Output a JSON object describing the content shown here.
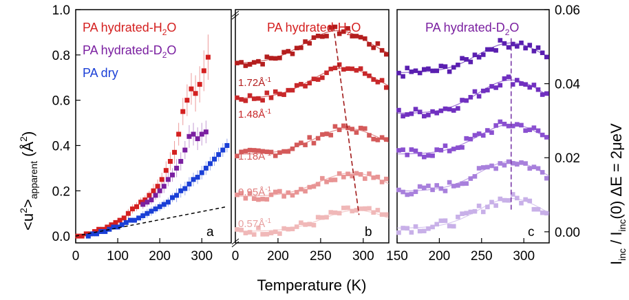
{
  "chart_data": [
    {
      "id": "a",
      "type": "scatter",
      "panel_label": "a",
      "xlim": [
        0,
        370
      ],
      "ylim": [
        -0.03,
        1.0
      ],
      "xticks": [
        0,
        100,
        200,
        300
      ],
      "xtick_labels": [
        "0",
        "100",
        "200",
        "300"
      ],
      "yticks": [
        0.0,
        0.2,
        0.4,
        0.6,
        0.8,
        1.0
      ],
      "ytick_labels": [
        "0.0",
        "0.2",
        "0.4",
        "0.6",
        "0.8",
        "1.0"
      ],
      "ylabel": "<u²>apparent (Å²)",
      "legend": [
        "PA hydrated-H2O",
        "PA hydrated-D2O",
        "PA dry"
      ],
      "colors": [
        "#d42020",
        "#7a1fa0",
        "#1a3fd6"
      ],
      "series": [
        {
          "name": "PA hydrated-H2O",
          "color": "#d42020",
          "x": [
            5,
            15,
            25,
            35,
            45,
            55,
            65,
            75,
            85,
            95,
            105,
            115,
            125,
            135,
            145,
            155,
            165,
            175,
            185,
            195,
            205,
            215,
            225,
            235,
            245,
            255,
            265,
            275,
            285,
            295,
            305,
            315
          ],
          "y": [
            0.0,
            0.0,
            0.01,
            0.01,
            0.02,
            0.03,
            0.03,
            0.04,
            0.05,
            0.06,
            0.07,
            0.08,
            0.1,
            0.12,
            0.13,
            0.15,
            0.16,
            0.18,
            0.2,
            0.22,
            0.25,
            0.29,
            0.33,
            0.37,
            0.45,
            0.55,
            0.6,
            0.65,
            0.63,
            0.67,
            0.73,
            0.79
          ],
          "err": [
            0.01,
            0.01,
            0.01,
            0.01,
            0.01,
            0.01,
            0.01,
            0.01,
            0.01,
            0.01,
            0.01,
            0.01,
            0.02,
            0.02,
            0.02,
            0.02,
            0.02,
            0.02,
            0.03,
            0.03,
            0.03,
            0.04,
            0.04,
            0.05,
            0.05,
            0.06,
            0.07,
            0.07,
            0.08,
            0.08,
            0.09,
            0.1
          ]
        },
        {
          "name": "PA hydrated-D2O",
          "color": "#7a1fa0",
          "x": [
            160,
            170,
            180,
            190,
            200,
            210,
            220,
            230,
            240,
            250,
            260,
            270,
            280,
            290,
            300,
            310
          ],
          "y": [
            0.14,
            0.15,
            0.16,
            0.18,
            0.2,
            0.22,
            0.25,
            0.27,
            0.3,
            0.33,
            0.38,
            0.44,
            0.45,
            0.43,
            0.45,
            0.46
          ],
          "err": [
            0.02,
            0.02,
            0.02,
            0.02,
            0.03,
            0.03,
            0.03,
            0.03,
            0.04,
            0.04,
            0.04,
            0.05,
            0.05,
            0.05,
            0.05,
            0.05
          ]
        },
        {
          "name": "PA dry",
          "color": "#1a3fd6",
          "x": [
            30,
            40,
            50,
            60,
            70,
            80,
            90,
            100,
            110,
            120,
            130,
            140,
            150,
            160,
            170,
            180,
            190,
            200,
            210,
            220,
            230,
            240,
            250,
            260,
            270,
            280,
            290,
            300,
            310,
            320,
            330,
            340,
            350,
            360
          ],
          "y": [
            0.0,
            0.01,
            0.01,
            0.02,
            0.02,
            0.03,
            0.04,
            0.04,
            0.05,
            0.06,
            0.07,
            0.07,
            0.08,
            0.09,
            0.1,
            0.11,
            0.12,
            0.13,
            0.14,
            0.15,
            0.17,
            0.18,
            0.2,
            0.21,
            0.23,
            0.25,
            0.26,
            0.28,
            0.3,
            0.32,
            0.34,
            0.36,
            0.38,
            0.4
          ],
          "err": [
            0.01,
            0.01,
            0.01,
            0.01,
            0.01,
            0.01,
            0.01,
            0.01,
            0.01,
            0.01,
            0.01,
            0.01,
            0.01,
            0.02,
            0.02,
            0.02,
            0.02,
            0.02,
            0.02,
            0.02,
            0.02,
            0.03,
            0.03,
            0.03,
            0.03,
            0.03,
            0.03,
            0.03,
            0.03,
            0.03,
            0.03,
            0.03,
            0.03,
            0.03
          ]
        }
      ],
      "reference_line": {
        "style": "dashed",
        "x": [
          0,
          360
        ],
        "y": [
          0.0,
          0.13
        ]
      }
    },
    {
      "id": "b",
      "type": "scatter",
      "panel_label": "b",
      "title": "PA hydrated-H2O",
      "xlim": [
        150,
        330
      ],
      "ylim": [
        0,
        1
      ],
      "xticks": [
        200,
        250,
        300
      ],
      "xtick_labels": [
        "200",
        "250",
        "300"
      ],
      "left_tick_label": "0",
      "series_labels": [
        "1.72Å⁻¹",
        "1.48Å⁻¹",
        "1.18Å⁻¹",
        "0.95Å⁻¹",
        "0.57Å⁻¹"
      ],
      "colors": [
        "#b41e1e",
        "#c8282a",
        "#d45a5a",
        "#e89494",
        "#f0b8b8"
      ],
      "baselines": [
        0.77,
        0.62,
        0.38,
        0.2,
        0.05
      ],
      "amplitudes": [
        0.14,
        0.13,
        0.11,
        0.1,
        0.09
      ],
      "peak_T": [
        270,
        278,
        282,
        287,
        292
      ],
      "peak_line": {
        "style": "dashed",
        "x": [
          265,
          295
        ],
        "y": [
          0.93,
          0.12
        ]
      }
    },
    {
      "id": "c",
      "type": "scatter",
      "panel_label": "c",
      "title": "PA hydrated-D2O",
      "xlim": [
        150,
        330
      ],
      "ylim": [
        -0.003,
        0.06
      ],
      "xticks": [
        150,
        200,
        250,
        300
      ],
      "xtick_labels": [
        "150",
        "200",
        "250",
        "300"
      ],
      "yticks": [
        0.0,
        0.02,
        0.04,
        0.06
      ],
      "ytick_labels": [
        "0.00",
        "0.02",
        "0.04",
        "0.06"
      ],
      "ylabel": "Iinc / Iinc(0) ΔE = 2μeV",
      "colors": [
        "#5a1fb0",
        "#7030c0",
        "#8a50d0",
        "#a880dc",
        "#c8b0e8"
      ],
      "baselines": [
        0.043,
        0.032,
        0.021,
        0.011,
        0.001
      ],
      "amplitudes": [
        0.008,
        0.009,
        0.008,
        0.008,
        0.008
      ],
      "peak_T": 285,
      "peak_line": {
        "style": "dashed",
        "x": [
          285,
          285
        ],
        "y": [
          0.006,
          0.053
        ]
      }
    }
  ],
  "x_axis_label": "Temperature (K)",
  "legend": {
    "items": [
      {
        "prefix": "PA hydrated-H",
        "sub": "2",
        "suffix": "O",
        "color": "#d42020"
      },
      {
        "prefix": "PA hydrated-D",
        "sub": "2",
        "suffix": "O",
        "color": "#7a1fa0"
      },
      {
        "prefix": "PA dry",
        "sub": "",
        "suffix": "",
        "color": "#1a3fd6"
      }
    ]
  },
  "panel_b_title": {
    "prefix": "PA hydrated-H",
    "sub": "2",
    "suffix": "O"
  },
  "panel_c_title": {
    "prefix": "PA hydrated-D",
    "sub": "2",
    "suffix": "O"
  },
  "q_labels": [
    {
      "num": "1.72Å",
      "sup": "-1"
    },
    {
      "num": "1.48Å",
      "sup": "-1"
    },
    {
      "num": "1.18Å",
      "sup": "-1"
    },
    {
      "num": "0.95Å",
      "sup": "-1"
    },
    {
      "num": "0.57Å",
      "sup": "-1"
    }
  ],
  "y_label_left": {
    "main": "<u",
    "sup": "2",
    "mid": ">",
    "sub": "apparent",
    "unit_open": " (Å",
    "unit_sup": "2",
    "unit_close": ")"
  },
  "y_label_right": {
    "i1": "I",
    "s1": "inc",
    "mid": " / I",
    "s2": "inc",
    "tail": "(0) ΔE = 2μeV"
  }
}
